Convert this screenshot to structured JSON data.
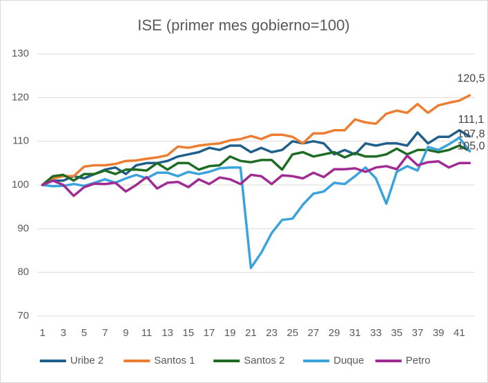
{
  "chart_data": {
    "type": "line",
    "title": "ISE (primer mes gobierno=100)",
    "categories": [
      1,
      null,
      3,
      null,
      5,
      null,
      7,
      null,
      9,
      null,
      11,
      null,
      13,
      null,
      15,
      null,
      17,
      null,
      19,
      null,
      21,
      null,
      23,
      null,
      25,
      null,
      27,
      null,
      29,
      null,
      31,
      null,
      33,
      null,
      35,
      null,
      37,
      null,
      39,
      null,
      41,
      null
    ],
    "ylim": [
      70,
      130
    ],
    "yticks": [
      70,
      80,
      90,
      100,
      110,
      120,
      130
    ],
    "grid": true,
    "legend": "bottom",
    "series": [
      {
        "name": "Uribe 2",
        "color": "#1f5f8b",
        "values": [
          100,
          101,
          101,
          102,
          101.5,
          102.5,
          103.5,
          104,
          102.5,
          104.5,
          105,
          105,
          105.5,
          106.5,
          107,
          107.5,
          108.5,
          108,
          109,
          109,
          107.5,
          108.5,
          107.5,
          108,
          110,
          109.5,
          110,
          109.5,
          107,
          108,
          107,
          109.5,
          109,
          109.5,
          109.5,
          109,
          112,
          109.5,
          111,
          111,
          112.5,
          111.1
        ],
        "value_labels": [
          null,
          null,
          null,
          null,
          null,
          null,
          null,
          null,
          null,
          null,
          null,
          null,
          null,
          null,
          null,
          null,
          null,
          null,
          null,
          null,
          null,
          null,
          null,
          null,
          null,
          null,
          null,
          null,
          null,
          null,
          null,
          null,
          null,
          null,
          null,
          null,
          null,
          null,
          null,
          null,
          null,
          "111,1"
        ]
      },
      {
        "name": "Santos 1",
        "color": "#ed7d31",
        "values": [
          100,
          101.5,
          102,
          102,
          104.2,
          104.5,
          104.5,
          104.8,
          105.5,
          105.6,
          106,
          106.3,
          106.8,
          108.8,
          108.5,
          109,
          109.3,
          109.5,
          110.2,
          110.5,
          111.2,
          110.5,
          111.5,
          111.5,
          111,
          109.5,
          111.8,
          111.8,
          112.5,
          112.5,
          115,
          114.3,
          114,
          116.3,
          117,
          116.5,
          118.5,
          116.5,
          118.2,
          118.8,
          119.3,
          120.5
        ],
        "value_labels": [
          null,
          null,
          null,
          null,
          null,
          null,
          null,
          null,
          null,
          null,
          null,
          null,
          null,
          null,
          null,
          null,
          null,
          null,
          null,
          null,
          null,
          null,
          null,
          null,
          null,
          null,
          null,
          null,
          null,
          null,
          null,
          null,
          null,
          null,
          null,
          null,
          null,
          null,
          null,
          null,
          null,
          "120,5"
        ]
      },
      {
        "name": "Santos 2",
        "color": "#1e6b24",
        "values": [
          100,
          102,
          102.3,
          101,
          102.5,
          102.5,
          103.3,
          102.5,
          103.5,
          103.5,
          103.3,
          105,
          103.5,
          105,
          105,
          103.5,
          104.3,
          104.5,
          106.5,
          105.5,
          105.2,
          105.7,
          105.7,
          103.5,
          107,
          107.5,
          106.5,
          107,
          107.5,
          106.3,
          107.3,
          106.5,
          106.5,
          107,
          108.3,
          107,
          108,
          108,
          107.5,
          108,
          109,
          107.8
        ],
        "value_labels": [
          null,
          null,
          null,
          null,
          null,
          null,
          null,
          null,
          null,
          null,
          null,
          null,
          null,
          null,
          null,
          null,
          null,
          null,
          null,
          null,
          null,
          null,
          null,
          null,
          null,
          null,
          null,
          null,
          null,
          null,
          null,
          null,
          null,
          null,
          null,
          null,
          null,
          null,
          null,
          null,
          null,
          "107,8"
        ]
      },
      {
        "name": "Duque",
        "color": "#3ba3dc",
        "values": [
          100,
          99.7,
          99.8,
          100.2,
          99.8,
          100.5,
          101.3,
          100.5,
          101.5,
          102.3,
          101.5,
          102.8,
          102.8,
          102,
          103,
          102.5,
          103,
          103.8,
          104,
          104,
          81,
          84.5,
          89,
          92,
          92.3,
          95.5,
          98,
          98.5,
          100.5,
          100.2,
          102,
          104,
          101.5,
          95.7,
          103,
          104.3,
          103.3,
          108.7,
          108,
          109.3,
          110.8,
          107.7
        ]
      },
      {
        "name": "Petro",
        "color": "#a02b93",
        "values": [
          100,
          101,
          100,
          97.5,
          99.5,
          100.3,
          100.2,
          100.5,
          98.5,
          100,
          101.8,
          99.2,
          100.5,
          100.7,
          99.5,
          101.3,
          100.2,
          101.7,
          101.3,
          100.2,
          102.3,
          102,
          100.2,
          102.2,
          102,
          101.5,
          102.8,
          101.8,
          103.6,
          103.6,
          103.8,
          103,
          104,
          104.3,
          103.6,
          106.7,
          104.5,
          105.2,
          105.4,
          104,
          105,
          105.0
        ],
        "value_labels": [
          null,
          null,
          null,
          null,
          null,
          null,
          null,
          null,
          null,
          null,
          null,
          null,
          null,
          null,
          null,
          null,
          null,
          null,
          null,
          null,
          null,
          null,
          null,
          null,
          null,
          null,
          null,
          null,
          null,
          null,
          null,
          null,
          null,
          null,
          null,
          null,
          null,
          null,
          null,
          null,
          null,
          "105,0"
        ]
      }
    ]
  }
}
